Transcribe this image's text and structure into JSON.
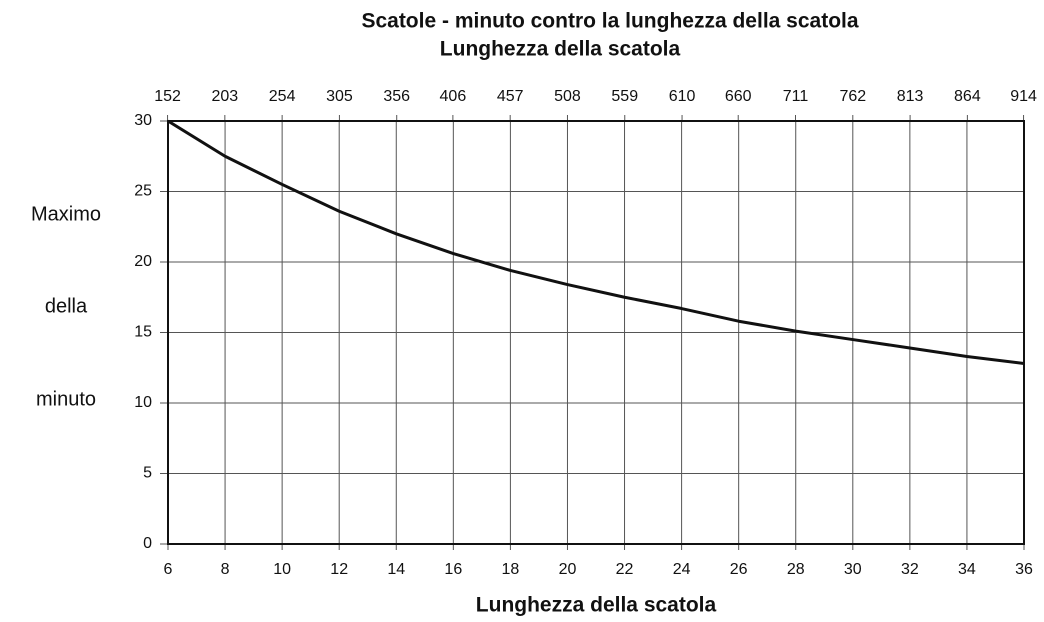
{
  "chart_data": {
    "type": "line",
    "title": "Scatole - minuto contro la lunghezza della scatola",
    "xlabel": "Lunghezza della scatola",
    "x2label": "Lunghezza della scatola",
    "ylabel": [
      "Maximo",
      "della",
      "minuto"
    ],
    "x": [
      6,
      8,
      10,
      12,
      14,
      16,
      18,
      20,
      22,
      24,
      26,
      28,
      30,
      32,
      34,
      36
    ],
    "series": [
      {
        "color": "#111111",
        "values": [
          30,
          27.5,
          25.5,
          23.6,
          22,
          20.6,
          19.4,
          18.4,
          17.5,
          16.7,
          15.8,
          15.1,
          14.5,
          13.9,
          13.3,
          12.8
        ]
      }
    ],
    "xlim": [
      6,
      36
    ],
    "xticks": [
      6,
      8,
      10,
      12,
      14,
      16,
      18,
      20,
      22,
      24,
      26,
      28,
      30,
      32,
      34,
      36
    ],
    "x2lim": [
      152.4,
      914.4
    ],
    "x2ticks": [
      152,
      203,
      254,
      305,
      356,
      406,
      457,
      508,
      559,
      610,
      660,
      711,
      762,
      813,
      864,
      914
    ],
    "ylim": [
      0,
      30
    ],
    "yticks": [
      0,
      5,
      10,
      15,
      20,
      25,
      30
    ],
    "grid": true
  }
}
